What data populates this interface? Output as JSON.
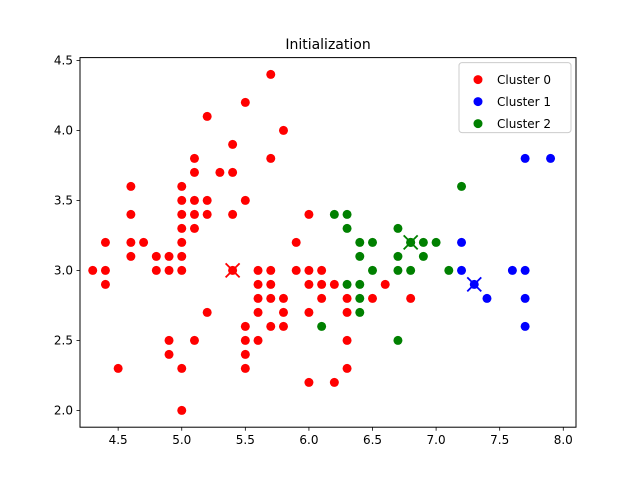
{
  "chart_data": {
    "type": "scatter",
    "title": "Initialization",
    "xlabel": "",
    "ylabel": "",
    "xlim": [
      4.2,
      8.1
    ],
    "ylim": [
      1.88,
      4.52
    ],
    "xticks": [
      "4.5",
      "5.0",
      "5.5",
      "6.0",
      "6.5",
      "7.0",
      "7.5",
      "8.0"
    ],
    "yticks": [
      "2.0",
      "2.5",
      "3.0",
      "3.5",
      "4.0",
      "4.5"
    ],
    "grid": false,
    "legend_position": "top-right",
    "series": [
      {
        "name": "Cluster 0",
        "color": "#ff0000",
        "points": [
          [
            5.7,
            4.4
          ],
          [
            5.5,
            4.2
          ],
          [
            5.2,
            4.1
          ],
          [
            5.8,
            4.0
          ],
          [
            5.4,
            3.9
          ],
          [
            5.1,
            3.8
          ],
          [
            5.7,
            3.8
          ],
          [
            5.1,
            3.7
          ],
          [
            5.3,
            3.7
          ],
          [
            5.4,
            3.7
          ],
          [
            4.6,
            3.6
          ],
          [
            5.0,
            3.6
          ],
          [
            5.0,
            3.5
          ],
          [
            5.1,
            3.5
          ],
          [
            5.2,
            3.5
          ],
          [
            5.5,
            3.5
          ],
          [
            4.6,
            3.4
          ],
          [
            5.0,
            3.4
          ],
          [
            5.1,
            3.4
          ],
          [
            5.2,
            3.4
          ],
          [
            5.4,
            3.4
          ],
          [
            6.0,
            3.4
          ],
          [
            5.0,
            3.3
          ],
          [
            5.1,
            3.3
          ],
          [
            4.4,
            3.2
          ],
          [
            4.6,
            3.2
          ],
          [
            4.7,
            3.2
          ],
          [
            5.0,
            3.2
          ],
          [
            5.9,
            3.2
          ],
          [
            4.6,
            3.1
          ],
          [
            4.8,
            3.1
          ],
          [
            4.9,
            3.1
          ],
          [
            5.0,
            3.1
          ],
          [
            4.3,
            3.0
          ],
          [
            4.4,
            3.0
          ],
          [
            4.8,
            3.0
          ],
          [
            4.9,
            3.0
          ],
          [
            5.0,
            3.0
          ],
          [
            5.6,
            3.0
          ],
          [
            5.7,
            3.0
          ],
          [
            5.9,
            3.0
          ],
          [
            6.0,
            3.0
          ],
          [
            6.1,
            3.0
          ],
          [
            4.4,
            2.9
          ],
          [
            5.6,
            2.9
          ],
          [
            5.7,
            2.9
          ],
          [
            6.0,
            2.9
          ],
          [
            6.1,
            2.9
          ],
          [
            6.2,
            2.9
          ],
          [
            6.6,
            2.9
          ],
          [
            5.6,
            2.8
          ],
          [
            5.7,
            2.8
          ],
          [
            5.8,
            2.8
          ],
          [
            6.1,
            2.8
          ],
          [
            6.3,
            2.8
          ],
          [
            6.5,
            2.8
          ],
          [
            6.8,
            2.8
          ],
          [
            5.2,
            2.7
          ],
          [
            5.6,
            2.7
          ],
          [
            5.8,
            2.7
          ],
          [
            6.0,
            2.7
          ],
          [
            6.3,
            2.7
          ],
          [
            5.5,
            2.6
          ],
          [
            5.7,
            2.6
          ],
          [
            5.8,
            2.6
          ],
          [
            4.9,
            2.5
          ],
          [
            5.1,
            2.5
          ],
          [
            5.5,
            2.5
          ],
          [
            5.6,
            2.5
          ],
          [
            6.3,
            2.5
          ],
          [
            4.9,
            2.4
          ],
          [
            5.5,
            2.4
          ],
          [
            4.5,
            2.3
          ],
          [
            5.0,
            2.3
          ],
          [
            5.5,
            2.3
          ],
          [
            6.3,
            2.3
          ],
          [
            6.0,
            2.2
          ],
          [
            6.2,
            2.2
          ],
          [
            5.0,
            2.0
          ]
        ]
      },
      {
        "name": "Cluster 1",
        "color": "#0000ff",
        "points": [
          [
            7.7,
            3.8
          ],
          [
            7.9,
            3.8
          ],
          [
            7.2,
            3.2
          ],
          [
            7.2,
            3.0
          ],
          [
            7.6,
            3.0
          ],
          [
            7.7,
            3.0
          ],
          [
            7.4,
            2.8
          ],
          [
            7.7,
            2.8
          ],
          [
            7.7,
            2.6
          ]
        ]
      },
      {
        "name": "Cluster 2",
        "color": "#008000",
        "points": [
          [
            7.2,
            3.6
          ],
          [
            6.2,
            3.4
          ],
          [
            6.3,
            3.4
          ],
          [
            6.3,
            3.3
          ],
          [
            6.7,
            3.3
          ],
          [
            6.4,
            3.2
          ],
          [
            6.5,
            3.2
          ],
          [
            6.8,
            3.2
          ],
          [
            6.9,
            3.2
          ],
          [
            7.0,
            3.2
          ],
          [
            6.4,
            3.1
          ],
          [
            6.7,
            3.1
          ],
          [
            6.9,
            3.1
          ],
          [
            6.5,
            3.0
          ],
          [
            6.7,
            3.0
          ],
          [
            6.8,
            3.0
          ],
          [
            7.1,
            3.0
          ],
          [
            6.3,
            2.9
          ],
          [
            6.4,
            2.9
          ],
          [
            6.4,
            2.8
          ],
          [
            6.4,
            2.7
          ],
          [
            6.1,
            2.6
          ],
          [
            6.7,
            2.5
          ]
        ]
      }
    ],
    "centroids": [
      {
        "cluster": "Cluster 0",
        "color": "#ff0000",
        "x": 5.4,
        "y": 3.0
      },
      {
        "cluster": "Cluster 1",
        "color": "#0000ff",
        "x": 7.3,
        "y": 2.9
      },
      {
        "cluster": "Cluster 2",
        "color": "#008000",
        "x": 6.8,
        "y": 3.2
      }
    ]
  }
}
